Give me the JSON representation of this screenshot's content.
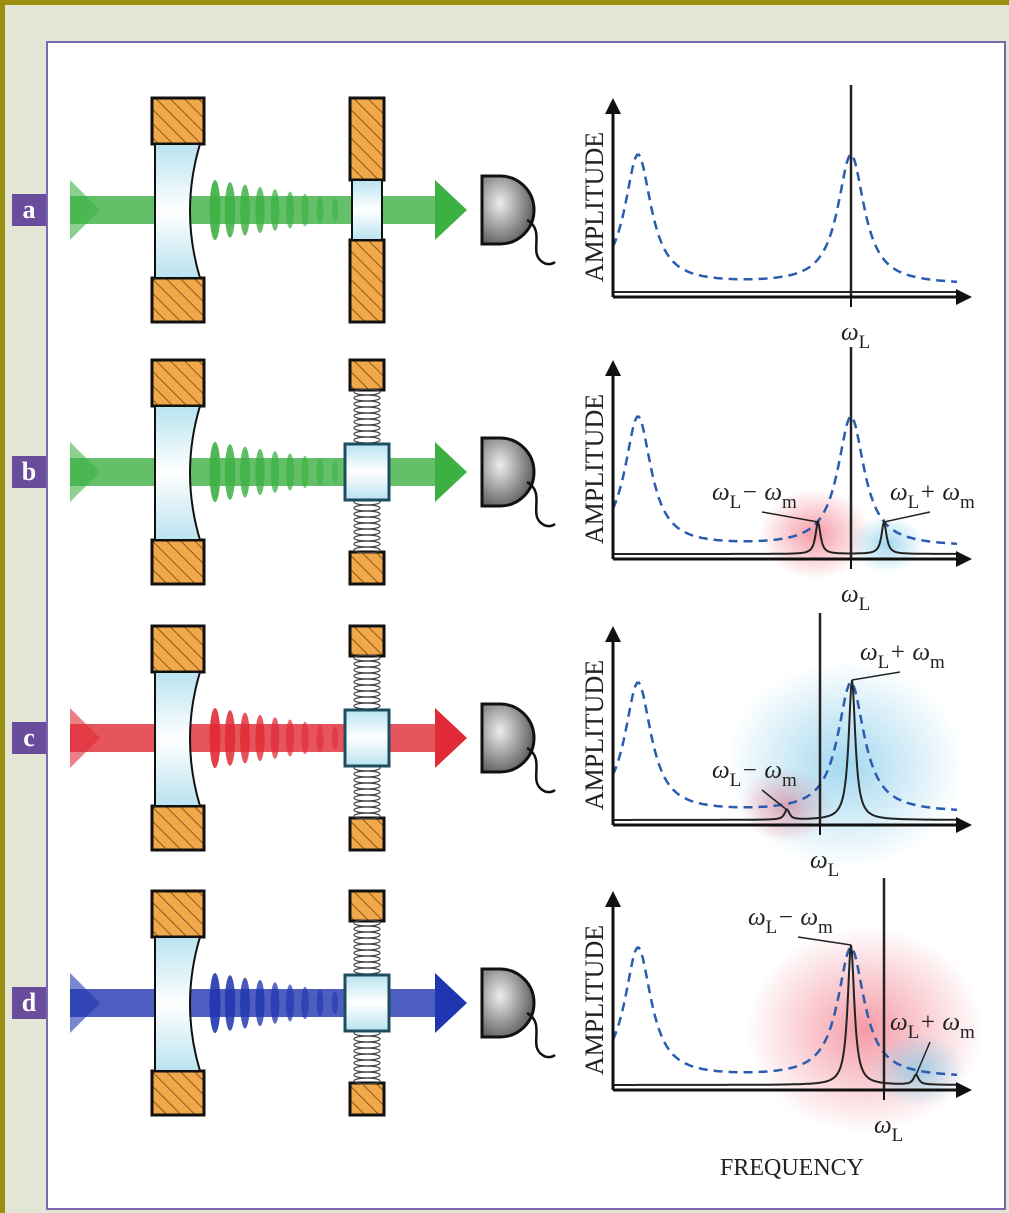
{
  "panels": [
    {
      "label": "a",
      "y_axis": "AMPLITUDE",
      "carrier": [
        "ω",
        "L"
      ]
    },
    {
      "label": "b",
      "y_axis": "AMPLITUDE",
      "carrier": [
        "ω",
        "L"
      ],
      "lower_sideband": [
        "ω",
        "L",
        "− ω",
        "m"
      ],
      "upper_sideband": [
        "ω",
        "L",
        "+ ω",
        "m"
      ]
    },
    {
      "label": "c",
      "y_axis": "AMPLITUDE",
      "carrier": [
        "ω",
        "L"
      ],
      "lower_sideband": [
        "ω",
        "L",
        "− ω",
        "m"
      ],
      "upper_sideband": [
        "ω",
        "L",
        "+ ω",
        "m"
      ]
    },
    {
      "label": "d",
      "y_axis": "AMPLITUDE",
      "carrier": [
        "ω",
        "L"
      ],
      "lower_sideband": [
        "ω",
        "L",
        "− ω",
        "m"
      ],
      "upper_sideband": [
        "ω",
        "L",
        "+ ω",
        "m"
      ]
    }
  ],
  "x_axis": "FREQUENCY"
}
